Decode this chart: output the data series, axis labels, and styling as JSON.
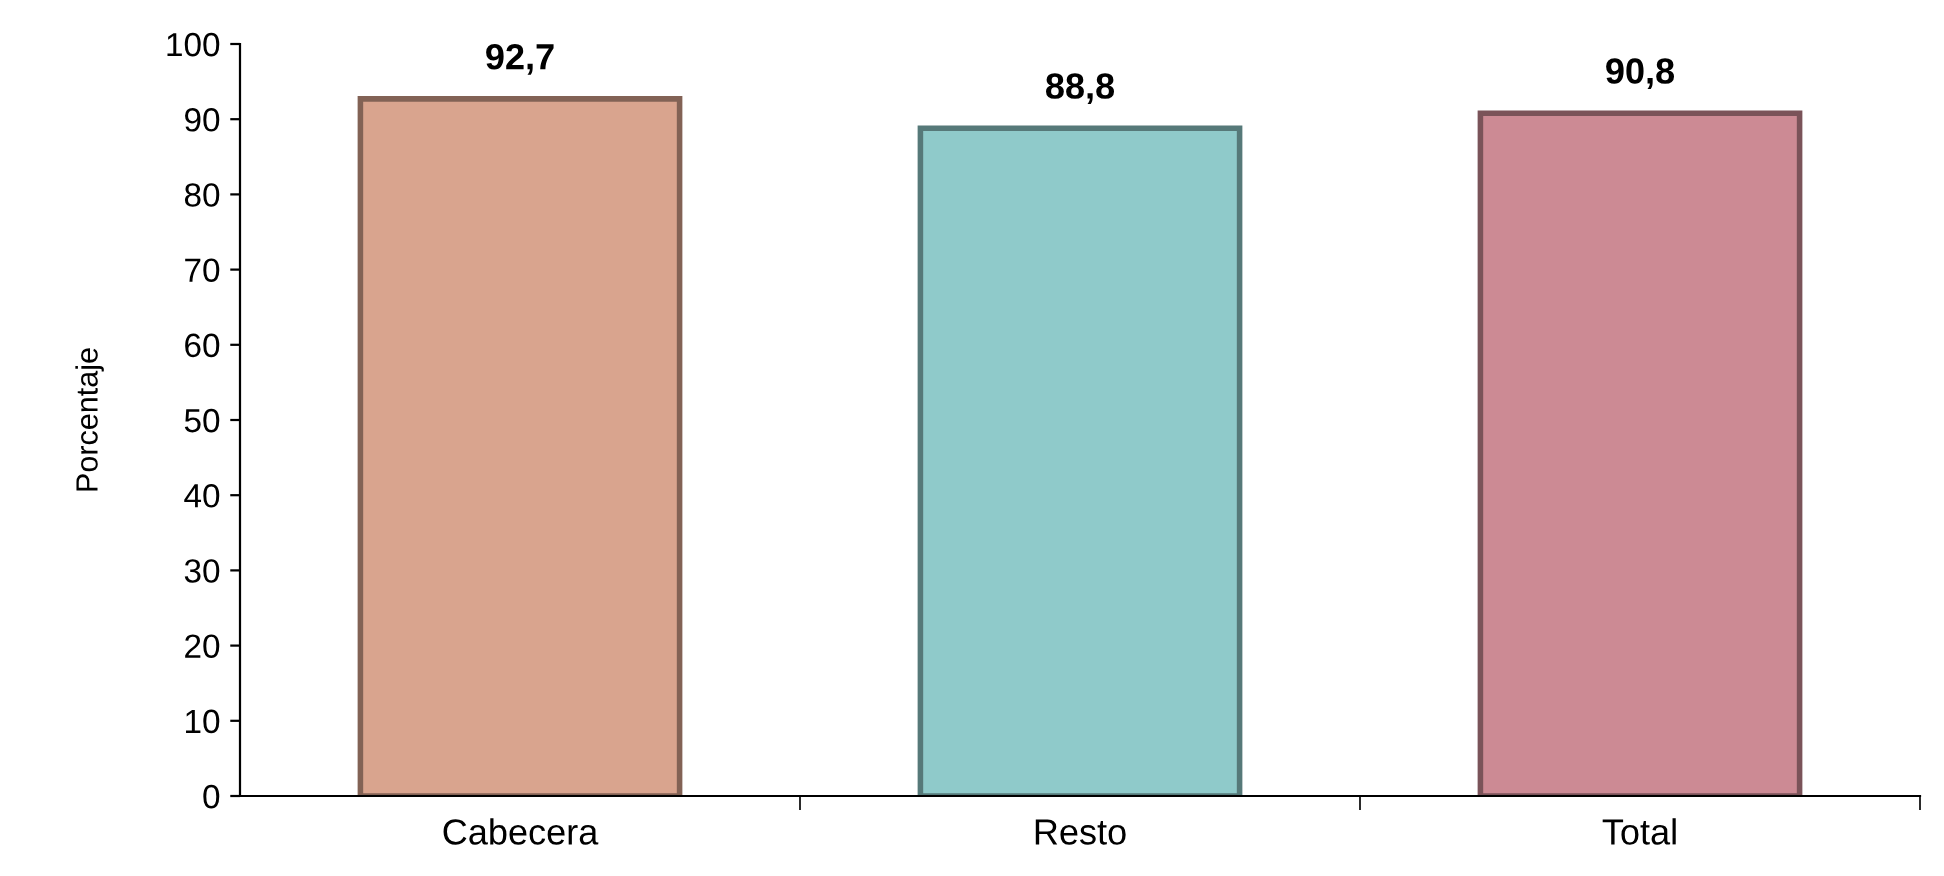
{
  "chart_data": {
    "type": "bar",
    "ylabel": "Porcentaje",
    "categories": [
      "Cabecera",
      "Resto",
      "Total"
    ],
    "values": [
      92.7,
      88.8,
      90.8
    ],
    "value_labels": [
      "92,7",
      "88,8",
      "90,8"
    ],
    "colors": [
      "#d9a48e",
      "#8fcaca",
      "#cc8a94"
    ],
    "ylim": [
      0,
      100
    ],
    "yticks": [
      0,
      10,
      20,
      30,
      40,
      50,
      60,
      70,
      80,
      90,
      100
    ],
    "grid": false,
    "legend": false
  }
}
